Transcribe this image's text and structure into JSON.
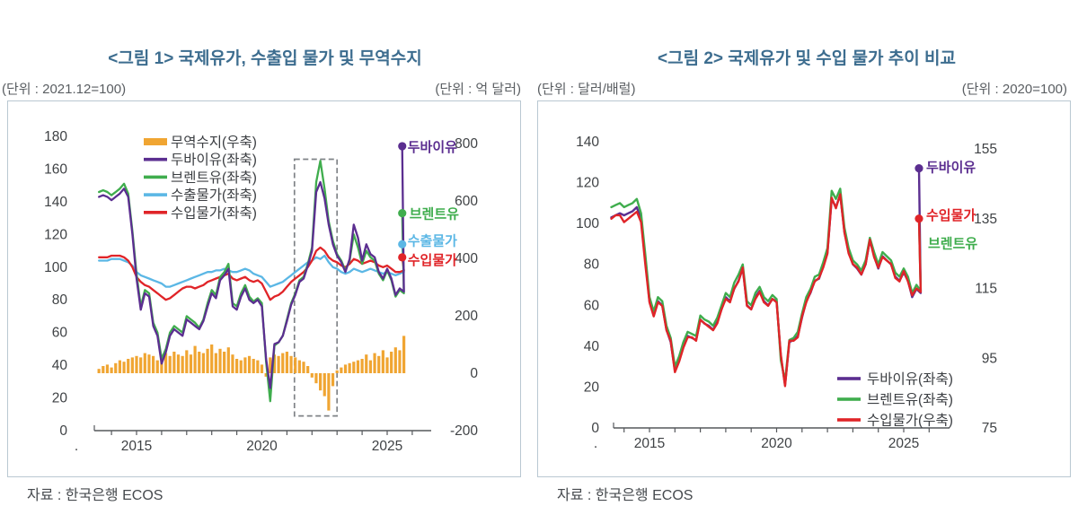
{
  "colors": {
    "orange": "#F0A532",
    "purple": "#5B2E90",
    "green": "#3FAD4D",
    "blue": "#5BB7E5",
    "red": "#E02428",
    "title": "#3D6D8F",
    "axis_text": "#3F4245",
    "unit_text": "#5A5E62",
    "source_text": "#464A4E",
    "box_border": "#B9C8D2",
    "dash": "#7F8387",
    "legend_text": "#3B3E42",
    "axis_line": "#55585C"
  },
  "panels": [
    {
      "title": "<그림 1> 국제유가, 수출입 물가 및 무역수지",
      "unit_left": "(단위 : 2021.12=100)",
      "unit_right": "(단위 : 억 달러)",
      "source": "자료 : 한국은행 ECOS",
      "chart_data": {
        "type": "line+bar",
        "x_start": 2013.5,
        "x_step": 0.16667,
        "x_end": 2025.6,
        "x_ticks": [
          2014,
          2015,
          2016,
          2017,
          2018,
          2019,
          2020,
          2021,
          2022,
          2023,
          2024,
          2025,
          2026
        ],
        "x_tick_labels": [
          {
            "year": 2015,
            "label": "2015"
          },
          {
            "year": 2020,
            "label": "2020"
          },
          {
            "year": 2025,
            "label": "2025"
          }
        ],
        "x_edge_label": ".",
        "y_left": {
          "range": [
            0,
            180
          ],
          "ticks": [
            180,
            160,
            140,
            120,
            100,
            80,
            60,
            40,
            20,
            0
          ]
        },
        "y_right": {
          "range": [
            -200,
            800
          ],
          "ticks": [
            800,
            600,
            400,
            200,
            0,
            -200
          ]
        },
        "highlight": {
          "x1": 2021.3,
          "x2": 2023.0,
          "v1": 9,
          "v2": 166
        },
        "series": [
          {
            "name": "무역수지(우축)",
            "type": "bar",
            "axis": "right",
            "color": "orange",
            "end_label": "",
            "values": [
              15,
              25,
              30,
              20,
              35,
              45,
              40,
              50,
              55,
              60,
              55,
              70,
              65,
              60,
              45,
              55,
              70,
              60,
              75,
              65,
              60,
              80,
              65,
              95,
              75,
              70,
              85,
              100,
              70,
              85,
              75,
              90,
              65,
              50,
              45,
              55,
              60,
              50,
              45,
              30,
              -12,
              55,
              65,
              60,
              70,
              75,
              60,
              55,
              45,
              40,
              25,
              -15,
              -35,
              -60,
              -80,
              -130,
              -45,
              10,
              20,
              30,
              35,
              40,
              45,
              50,
              65,
              45,
              70,
              60,
              80,
              55,
              75,
              90,
              80,
              130
            ]
          },
          {
            "name": "수출물가(좌축)",
            "type": "line",
            "axis": "left",
            "color": "blue",
            "end_label": "수출물가",
            "values": [
              104,
              104,
              104,
              105,
              105,
              105,
              104,
              103,
              101,
              97,
              95,
              94,
              93,
              92,
              91,
              90,
              88,
              88,
              89,
              90,
              91,
              92,
              93,
              94,
              95,
              96,
              97,
              97,
              98,
              98,
              99,
              98,
              97,
              97,
              98,
              99,
              98,
              96,
              95,
              94,
              91,
              88,
              89,
              90,
              91,
              93,
              95,
              97,
              99,
              101,
              103,
              104,
              106,
              105,
              107,
              103,
              100,
              99,
              97,
              96,
              97,
              99,
              98,
              97,
              98,
              99,
              98,
              97,
              96,
              97,
              96,
              95,
              96,
              97,
              114
            ]
          },
          {
            "name": "수입물가(좌축)",
            "type": "line",
            "axis": "left",
            "color": "red",
            "end_label": "수입물가",
            "values": [
              106,
              106,
              106,
              107,
              107,
              107,
              106,
              104,
              100,
              94,
              91,
              89,
              88,
              86,
              84,
              82,
              80,
              81,
              83,
              85,
              87,
              88,
              88,
              87,
              88,
              89,
              91,
              92,
              93,
              94,
              95,
              96,
              93,
              92,
              93,
              94,
              92,
              91,
              92,
              90,
              85,
              80,
              82,
              83,
              85,
              88,
              91,
              93,
              95,
              97,
              100,
              104,
              110,
              112,
              110,
              106,
              104,
              103,
              101,
              100,
              102,
              105,
              104,
              102,
              103,
              104,
              103,
              101,
              100,
              101,
              99,
              97,
              97,
              98,
              106
            ]
          },
          {
            "name": "브렌트유(좌축)",
            "type": "line",
            "axis": "left",
            "color": "green",
            "end_label": "브렌트유",
            "values": [
              146,
              147,
              146,
              144,
              146,
              148,
              151,
              145,
              122,
              96,
              76,
              86,
              84,
              66,
              60,
              44,
              50,
              60,
              64,
              62,
              60,
              70,
              68,
              66,
              63,
              68,
              78,
              86,
              83,
              94,
              97,
              102,
              78,
              76,
              84,
              89,
              82,
              79,
              81,
              78,
              42,
              18,
              52,
              54,
              58,
              68,
              78,
              84,
              92,
              94,
              102,
              112,
              152,
              165,
              148,
              128,
              116,
              108,
              104,
              98,
              104,
              120,
              112,
              102,
              110,
              106,
              104,
              96,
              92,
              98,
              92,
              82,
              86,
              84,
              133
            ]
          },
          {
            "name": "두바이유(좌축)",
            "type": "line",
            "axis": "left",
            "color": "purple",
            "end_label": "두바이유",
            "values": [
              143,
              144,
              143,
              141,
              143,
              145,
              148,
              143,
              120,
              93,
              74,
              84,
              82,
              64,
              58,
              41,
              48,
              58,
              62,
              60,
              58,
              68,
              66,
              64,
              62,
              67,
              76,
              84,
              81,
              92,
              95,
              99,
              76,
              74,
              82,
              87,
              80,
              78,
              80,
              76,
              44,
              26,
              53,
              54,
              58,
              67,
              77,
              83,
              91,
              93,
              101,
              110,
              146,
              152,
              142,
              126,
              114,
              107,
              103,
              97,
              105,
              126,
              118,
              104,
              114,
              108,
              106,
              97,
              93,
              99,
              93,
              83,
              87,
              85,
              174
            ]
          }
        ]
      }
    },
    {
      "title": "<그림 2> 국제유가 및 수입 물가 추이 비교",
      "unit_left": "(단위 : 달러/배럴)",
      "unit_right": "(단위 : 2020=100)",
      "source": "자료 : 한국은행 ECOS",
      "chart_data": {
        "type": "line",
        "x_start": 2013.5,
        "x_step": 0.16667,
        "x_end": 2025.6,
        "x_ticks": [
          2014,
          2015,
          2016,
          2017,
          2018,
          2019,
          2020,
          2021,
          2022,
          2023,
          2024,
          2025,
          2026
        ],
        "x_tick_labels": [
          {
            "year": 2015,
            "label": "2015"
          },
          {
            "year": 2020,
            "label": "2020"
          },
          {
            "year": 2025,
            "label": "2025"
          }
        ],
        "x_edge_label": ".",
        "y_left": {
          "range": [
            0,
            140
          ],
          "ticks": [
            140,
            120,
            100,
            80,
            60,
            40,
            20,
            0
          ]
        },
        "y_right": {
          "range": [
            75,
            155
          ],
          "ticks": [
            155,
            135,
            115,
            95,
            75
          ]
        },
        "series": [
          {
            "name": "두바이유(좌축)",
            "type": "line",
            "axis": "left",
            "color": "purple",
            "end_label": "두바이유",
            "values": [
              103,
              104,
              105,
              104,
              105,
              106,
              108,
              102,
              82,
              62,
              55,
              62,
              60,
              48,
              42,
              28,
              33,
              40,
              45,
              44,
              43,
              53,
              51,
              50,
              48,
              52,
              58,
              64,
              62,
              68,
              72,
              78,
              60,
              58,
              64,
              67,
              62,
              60,
              63,
              62,
              35,
              21,
              42,
              43,
              45,
              54,
              62,
              66,
              72,
              73,
              79,
              86,
              112,
              108,
              114,
              96,
              86,
              80,
              78,
              75,
              80,
              92,
              84,
              78,
              84,
              82,
              80,
              74,
              72,
              76,
              72,
              64,
              68,
              66,
              127
            ]
          },
          {
            "name": "브렌트유(좌축)",
            "type": "line",
            "axis": "left",
            "color": "green",
            "end_label": "브렌트유",
            "values": [
              108,
              109,
              110,
              108,
              109,
              110,
              112,
              105,
              85,
              64,
              57,
              64,
              62,
              50,
              44,
              30,
              35,
              42,
              47,
              46,
              45,
              55,
              53,
              52,
              50,
              54,
              60,
              66,
              64,
              71,
              75,
              80,
              62,
              60,
              66,
              69,
              64,
              62,
              65,
              63,
              33,
              23,
              43,
              44,
              47,
              56,
              64,
              68,
              74,
              75,
              81,
              88,
              116,
              112,
              117,
              98,
              88,
              82,
              80,
              77,
              82,
              93,
              86,
              80,
              86,
              84,
              82,
              76,
              74,
              78,
              74,
              66,
              70,
              67,
              102
            ]
          },
          {
            "name": "수입물가(우축)",
            "type": "line",
            "axis": "right",
            "color": "red",
            "end_label": "수입물가",
            "values": [
              135,
              136,
              136,
              134,
              135,
              136,
              137,
              134,
              122,
              111,
              107,
              111,
              110,
              103,
              100,
              91,
              94,
              98,
              101,
              101,
              100,
              106,
              105,
              104,
              103,
              105,
              109,
              112,
              111,
              115,
              117,
              121,
              110,
              109,
              112,
              114,
              111,
              110,
              112,
              111,
              96,
              87,
              100,
              100,
              101,
              107,
              111,
              114,
              117,
              118,
              121,
              125,
              141,
              138,
              142,
              131,
              125,
              122,
              121,
              119,
              122,
              129,
              124,
              121,
              124,
              123,
              122,
              118,
              117,
              120,
              117,
              113,
              115,
              114,
              135
            ]
          }
        ]
      }
    }
  ]
}
